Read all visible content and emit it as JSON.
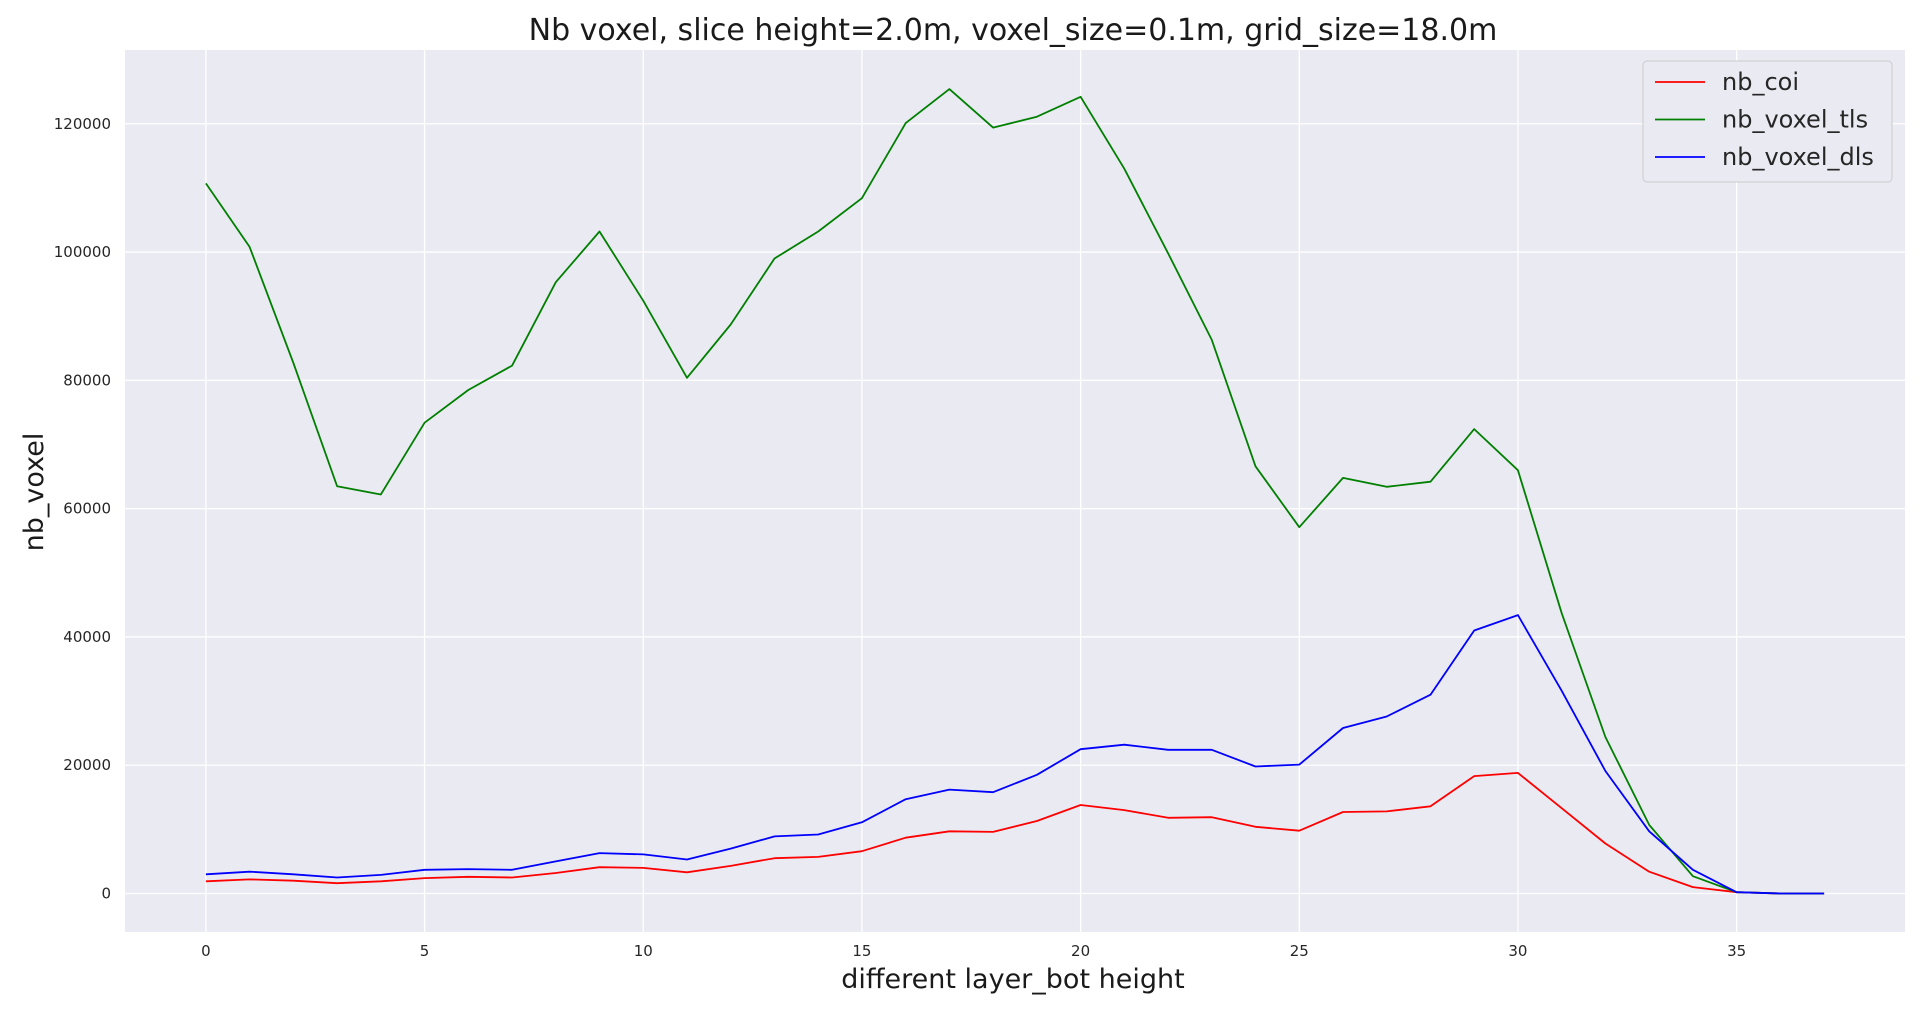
{
  "chart_data": {
    "type": "line",
    "title": "Nb voxel, slice height=2.0m, voxel_size=0.1m, grid_size=18.0m",
    "xlabel": "different layer_bot height",
    "ylabel": "nb_voxel",
    "xlim": [
      -1.85,
      38.85
    ],
    "ylim": [
      -6000,
      131500
    ],
    "xticks": [
      0,
      5,
      10,
      15,
      20,
      25,
      30,
      35
    ],
    "yticks": [
      0,
      20000,
      40000,
      60000,
      80000,
      100000,
      120000
    ],
    "grid": true,
    "legend_position": "top-right",
    "x": [
      0,
      1,
      2,
      3,
      4,
      5,
      6,
      7,
      8,
      9,
      10,
      11,
      12,
      13,
      14,
      15,
      16,
      17,
      18,
      19,
      20,
      21,
      22,
      23,
      24,
      25,
      26,
      27,
      28,
      29,
      30,
      31,
      32,
      33,
      34,
      35,
      36,
      37
    ],
    "series": [
      {
        "name": "nb_coi",
        "color": "#ff0000",
        "values": [
          1900,
          2200,
          2000,
          1600,
          1900,
          2400,
          2600,
          2500,
          3200,
          4100,
          4000,
          3300,
          4300,
          5500,
          5700,
          6600,
          8700,
          9700,
          9600,
          11300,
          13800,
          13000,
          11800,
          11900,
          10400,
          9800,
          12700,
          12800,
          13600,
          18300,
          18800,
          13300,
          7800,
          3400,
          1000,
          200,
          0,
          0
        ]
      },
      {
        "name": "nb_voxel_tls",
        "color": "#008000",
        "values": [
          110700,
          100800,
          82700,
          63500,
          62200,
          73400,
          78500,
          82300,
          95300,
          103200,
          92400,
          80400,
          88700,
          99000,
          103200,
          108400,
          120100,
          125400,
          119400,
          121100,
          124200,
          113000,
          99800,
          86300,
          66600,
          57100,
          64800,
          63400,
          64200,
          72400,
          66000,
          43700,
          24400,
          10700,
          2700,
          200,
          0,
          0
        ]
      },
      {
        "name": "nb_voxel_dls",
        "color": "#0000ff",
        "values": [
          3000,
          3400,
          3000,
          2500,
          2900,
          3700,
          3800,
          3700,
          5000,
          6300,
          6100,
          5300,
          7000,
          8900,
          9200,
          11100,
          14700,
          16200,
          15800,
          18500,
          22500,
          23200,
          22400,
          22400,
          19800,
          20100,
          25800,
          27600,
          31000,
          41000,
          43400,
          31600,
          19100,
          9700,
          3700,
          200,
          0,
          0
        ]
      }
    ]
  }
}
